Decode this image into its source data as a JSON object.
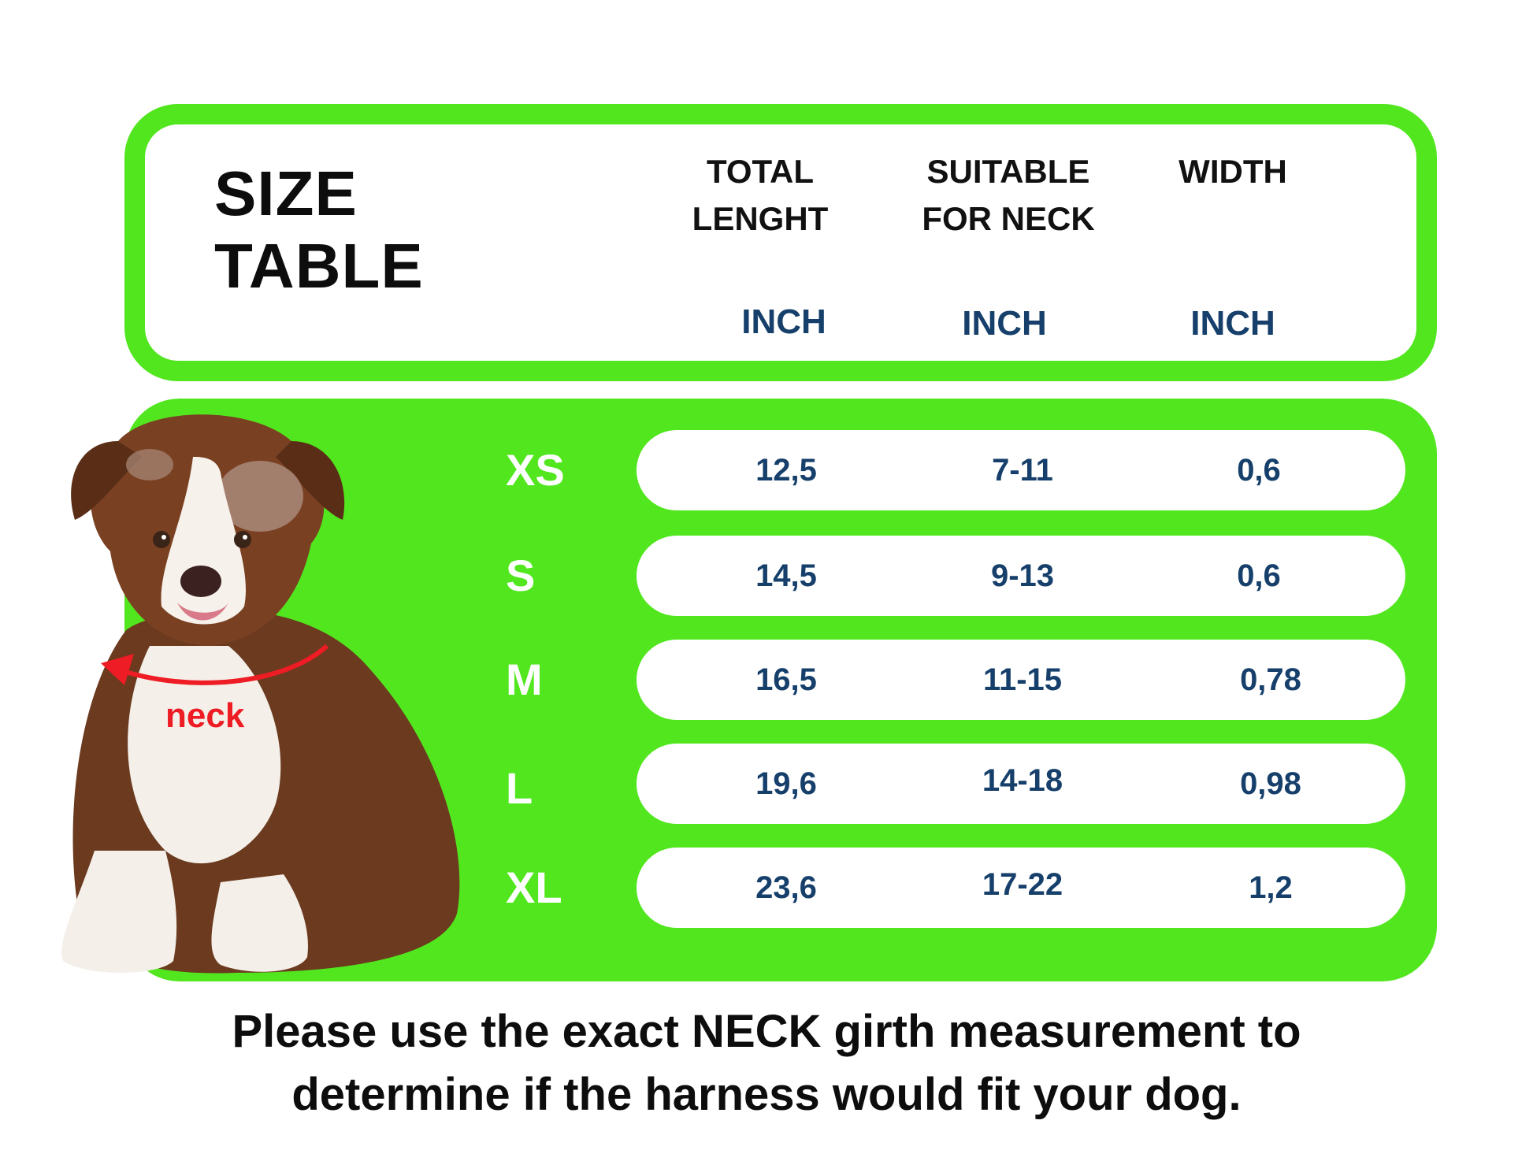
{
  "header": {
    "title": "SIZE\nTABLE",
    "columns": [
      {
        "title": "TOTAL\nLENGHT",
        "unit": "INCH"
      },
      {
        "title": "SUITABLE\nFOR NECK",
        "unit": "INCH"
      },
      {
        "title": "WIDTH",
        "unit": "INCH"
      }
    ]
  },
  "rows": [
    {
      "size": "XS",
      "length": "12,5",
      "neck": "7-11",
      "width": "0,6"
    },
    {
      "size": "S",
      "length": "14,5",
      "neck": "9-13",
      "width": "0,6"
    },
    {
      "size": "M",
      "length": "16,5",
      "neck": "11-15",
      "width": "0,78"
    },
    {
      "size": "L",
      "length": "19,6",
      "neck": "14-18",
      "width": "0,98"
    },
    {
      "size": "XL",
      "length": "23,6",
      "neck": "17-22",
      "width": "1,2"
    }
  ],
  "illustration": {
    "neck_label": "neck"
  },
  "footnote": "Please use the exact NECK girth measurement to\ndetermine if the harness would fit your dog.",
  "colors": {
    "accent_green": "#52e61f",
    "value_blue": "#16406b",
    "neck_red": "#ee1c24"
  }
}
